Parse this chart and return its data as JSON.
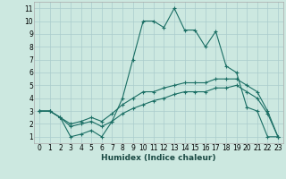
{
  "xlabel": "Humidex (Indice chaleur)",
  "bg_color": "#cce8e0",
  "grid_color": "#aacccc",
  "line_color": "#1a6e64",
  "x_ticks": [
    0,
    1,
    2,
    3,
    4,
    5,
    6,
    7,
    8,
    9,
    10,
    11,
    12,
    13,
    14,
    15,
    16,
    17,
    18,
    19,
    20,
    21,
    22,
    23
  ],
  "y_ticks": [
    1,
    2,
    3,
    4,
    5,
    6,
    7,
    8,
    9,
    10,
    11
  ],
  "xlim": [
    -0.5,
    23.5
  ],
  "ylim": [
    0.5,
    11.5
  ],
  "line1_x": [
    0,
    1,
    2,
    3,
    4,
    5,
    6,
    7,
    8,
    9,
    10,
    11,
    12,
    13,
    14,
    15,
    16,
    17,
    18,
    19,
    20,
    21,
    22,
    23
  ],
  "line1_y": [
    3,
    3,
    2.5,
    1,
    1.2,
    1.5,
    1,
    2.2,
    4,
    7,
    10,
    10,
    9.5,
    11,
    9.3,
    9.3,
    8,
    9.2,
    6.5,
    6,
    3.3,
    3,
    1,
    1
  ],
  "line2_x": [
    0,
    1,
    2,
    3,
    4,
    5,
    6,
    7,
    8,
    9,
    10,
    11,
    12,
    13,
    14,
    15,
    16,
    17,
    18,
    19,
    20,
    21,
    22,
    23
  ],
  "line2_y": [
    3,
    3,
    2.5,
    2,
    2.2,
    2.5,
    2.2,
    2.8,
    3.5,
    4,
    4.5,
    4.5,
    4.8,
    5,
    5.2,
    5.2,
    5.2,
    5.5,
    5.5,
    5.5,
    5,
    4.5,
    3,
    1
  ],
  "line3_x": [
    0,
    1,
    2,
    3,
    4,
    5,
    6,
    7,
    8,
    9,
    10,
    11,
    12,
    13,
    14,
    15,
    16,
    17,
    18,
    19,
    20,
    21,
    22,
    23
  ],
  "line3_y": [
    3,
    3,
    2.5,
    1.8,
    2,
    2.2,
    1.8,
    2.2,
    2.8,
    3.2,
    3.5,
    3.8,
    4,
    4.3,
    4.5,
    4.5,
    4.5,
    4.8,
    4.8,
    5,
    4.5,
    4,
    2.8,
    1
  ]
}
